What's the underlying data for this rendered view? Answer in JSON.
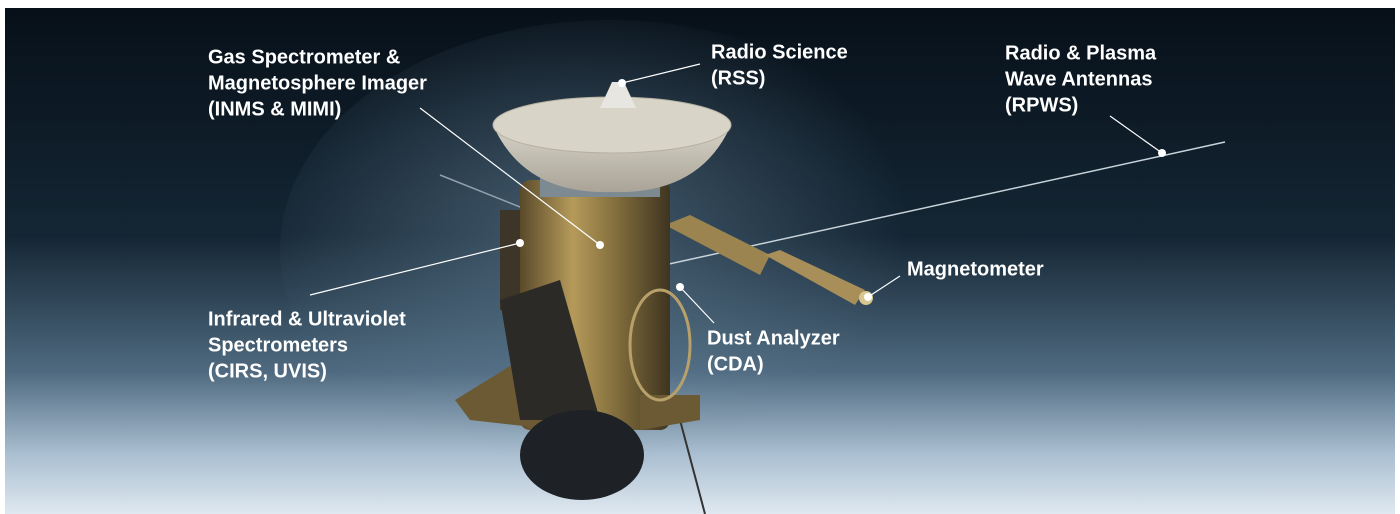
{
  "labels": [
    {
      "lines": [
        "Gas Spectrometer &",
        "Magnetosphere Imager",
        "(INMS & MIMI)"
      ]
    },
    {
      "lines": [
        "Radio Science",
        "(RSS)"
      ]
    },
    {
      "lines": [
        "Radio & Plasma",
        "Wave Antennas",
        "(RPWS)"
      ]
    },
    {
      "lines": [
        "Magnetometer"
      ]
    },
    {
      "lines": [
        "Dust Analyzer",
        "(CDA)"
      ]
    },
    {
      "lines": [
        "Infrared & Ultraviolet",
        "Spectrometers",
        "(CIRS, UVIS)"
      ]
    }
  ]
}
